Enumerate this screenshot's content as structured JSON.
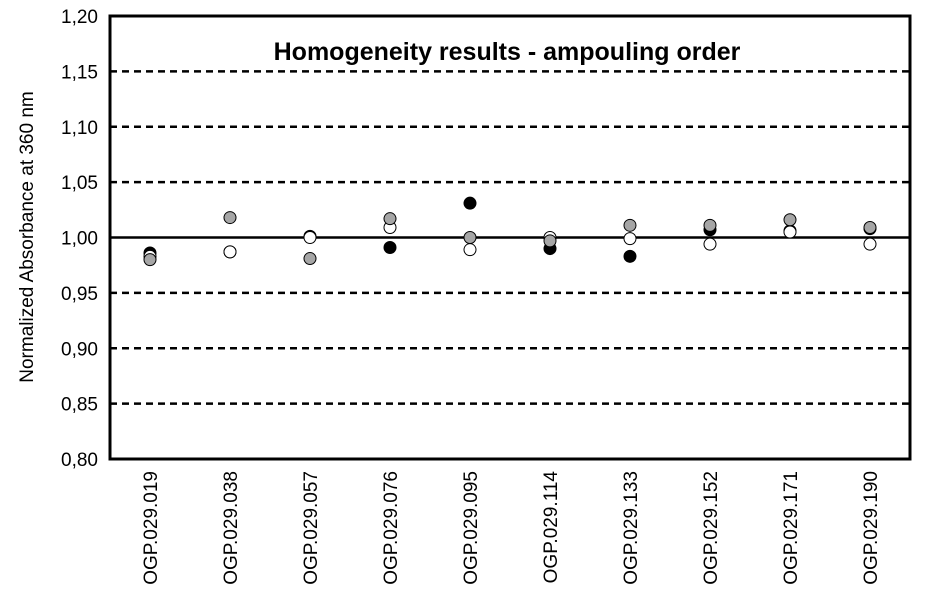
{
  "chart_data": {
    "type": "scatter",
    "title": "Homogeneity results - ampouling order",
    "ylabel": "Normalized Absorbance at 360 nm",
    "xlabel": "",
    "ylim": [
      0.8,
      1.2
    ],
    "yticks": [
      "0,80",
      "0,85",
      "0,90",
      "0,95",
      "1,00",
      "1,05",
      "1,10",
      "1,15",
      "1,20"
    ],
    "ytick_values": [
      0.8,
      0.85,
      0.9,
      0.95,
      1.0,
      1.05,
      1.1,
      1.15,
      1.2
    ],
    "grid": "dashed horizontal",
    "reference_line": 1.0,
    "categories": [
      "OGP.029.019",
      "OGP.029.038",
      "OGP.029.057",
      "OGP.029.076",
      "OGP.029.095",
      "OGP.029.114",
      "OGP.029.133",
      "OGP.029.152",
      "OGP.029.171",
      "OGP.029.190"
    ],
    "series": [
      {
        "fill": "#000000",
        "values": [
          0.986,
          0.987,
          1.001,
          0.991,
          1.031,
          0.99,
          0.983,
          1.007,
          1.006,
          1.008
        ]
      },
      {
        "fill": "#ffffff",
        "values": [
          0.983,
          0.987,
          1.0,
          1.009,
          0.989,
          1.0,
          0.999,
          0.994,
          1.005,
          0.994
        ]
      },
      {
        "fill": "#a6a6a6",
        "values": [
          0.98,
          1.018,
          0.981,
          1.017,
          1.0,
          0.997,
          1.011,
          1.011,
          1.016,
          1.009
        ]
      }
    ]
  }
}
